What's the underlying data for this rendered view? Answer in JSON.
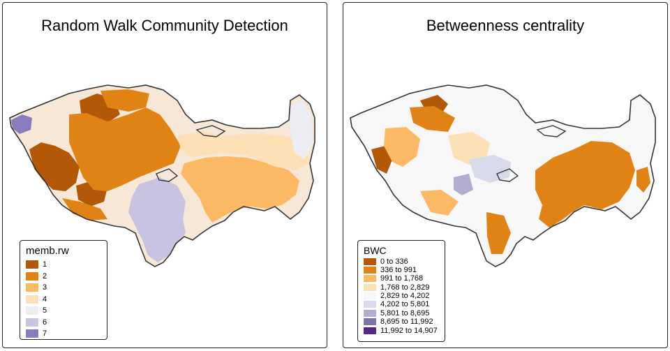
{
  "panels": {
    "left": {
      "title": "Random Walk Community Detection",
      "legend": {
        "title": "memb.rw",
        "items": [
          {
            "label": "1",
            "color": "#b35806"
          },
          {
            "label": "2",
            "color": "#e08214"
          },
          {
            "label": "3",
            "color": "#fdb863"
          },
          {
            "label": "4",
            "color": "#fee0b6"
          },
          {
            "label": "5",
            "color": "#ececf3"
          },
          {
            "label": "6",
            "color": "#c7c3e0"
          },
          {
            "label": "7",
            "color": "#8a7bbf"
          }
        ]
      }
    },
    "right": {
      "title": "Betweenness centrality",
      "legend": {
        "title": "BWC",
        "items": [
          {
            "label": "0 to 336",
            "color": "#b35806"
          },
          {
            "label": "336 to 991",
            "color": "#e08214"
          },
          {
            "label": "991 to 1,768",
            "color": "#fdb863"
          },
          {
            "label": "1,768 to 2,829",
            "color": "#fee0b6"
          },
          {
            "label": "2,829 to 4,202",
            "color": "#f7f7f7"
          },
          {
            "label": "4,202 to 5,801",
            "color": "#d8daeb"
          },
          {
            "label": "5,801 to 8,695",
            "color": "#b2abd2"
          },
          {
            "label": "8,695 to 11,992",
            "color": "#8073ac"
          },
          {
            "label": "11,992 to 14,907",
            "color": "#542788"
          }
        ]
      }
    }
  }
}
